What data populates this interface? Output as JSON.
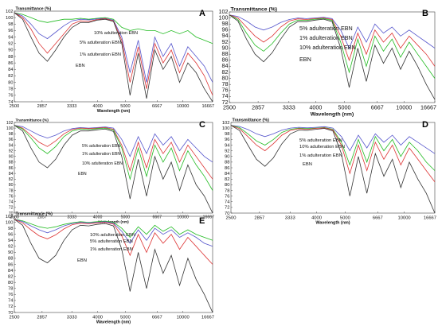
{
  "chart_data": [
    {
      "panel": "A",
      "type": "line",
      "ylabel": "Transmittance (%)",
      "xlabel": "Wavelength (nm)",
      "xtick_labels": [
        "2500",
        "2857",
        "3333",
        "4000",
        "5000",
        "6667",
        "10000",
        "16667"
      ],
      "ytick_values": [
        74,
        76,
        78,
        80,
        82,
        84,
        86,
        88,
        90,
        92,
        94,
        96,
        98,
        100,
        102
      ],
      "ylim": [
        74,
        102
      ],
      "annotations": [
        "10% adulteration EBN",
        "5% adulteration EBN",
        "1% adulteration EBN",
        "EBN"
      ],
      "series": [
        {
          "color": "#22bb22",
          "values": [
            101.5,
            101,
            100,
            99,
            98.5,
            99,
            99.5,
            99.5,
            99.8,
            99.5,
            99.8,
            100,
            99.5,
            97,
            96,
            96.5,
            96,
            96,
            95,
            96,
            95,
            96,
            94,
            93,
            92
          ]
        },
        {
          "color": "#5555cc",
          "values": [
            101.5,
            100.5,
            98,
            95,
            93.5,
            95.5,
            97.5,
            99,
            99.5,
            99.3,
            99.6,
            99.8,
            99.2,
            94,
            83,
            93,
            80,
            94,
            88,
            92,
            85,
            91,
            88,
            85,
            80
          ]
        },
        {
          "color": "#dd3333",
          "values": [
            101.5,
            100,
            96.5,
            92,
            89,
            92,
            95,
            98,
            99,
            98.8,
            99.4,
            99.7,
            99,
            93,
            80,
            91,
            78,
            92,
            86,
            90,
            83,
            89,
            86,
            82,
            76
          ]
        },
        {
          "color": "#333333",
          "values": [
            101.5,
            99.5,
            94,
            89,
            86.5,
            90,
            94,
            97,
            98.5,
            98.5,
            99.2,
            99.5,
            98.8,
            92,
            76,
            89,
            75,
            90,
            84,
            88,
            80,
            86,
            83,
            78,
            74
          ]
        }
      ]
    },
    {
      "panel": "B",
      "type": "line",
      "ylabel": "Transmittance (%)",
      "xlabel": "Wavelength (nm)",
      "xtick_labels": [
        "2500",
        "2857",
        "3333",
        "4000",
        "5000",
        "6667",
        "10000",
        "16667"
      ],
      "ytick_values": [
        72,
        74,
        76,
        78,
        80,
        82,
        84,
        86,
        88,
        90,
        92,
        94,
        96,
        98,
        100,
        102
      ],
      "ylim": [
        72,
        102
      ],
      "annotations": [
        "5% adulteration EBN",
        "1% adulteration EBN",
        "10% adulteration EBN",
        "EBN"
      ],
      "series": [
        {
          "color": "#5555cc",
          "values": [
            101,
            100.5,
            99,
            97,
            96,
            97,
            98.5,
            99.5,
            100,
            99.8,
            100,
            100.2,
            99.8,
            96,
            90,
            97,
            92,
            98,
            95,
            97,
            94,
            96,
            94,
            92,
            90
          ]
        },
        {
          "color": "#dd3333",
          "values": [
            101,
            100,
            97,
            94,
            92,
            94,
            97,
            99,
            99.7,
            99.5,
            99.8,
            100,
            99.5,
            94,
            86,
            95,
            88,
            96,
            92,
            95,
            90,
            94,
            91,
            88,
            84
          ]
        },
        {
          "color": "#22bb22",
          "values": [
            101,
            99.5,
            95,
            91,
            89,
            91.5,
            95,
            98,
            99.3,
            99.2,
            99.6,
            99.8,
            99.2,
            92,
            82,
            93,
            84,
            94,
            89,
            93,
            87,
            92,
            88,
            84,
            80
          ]
        },
        {
          "color": "#333333",
          "values": [
            101,
            99,
            93,
            88,
            85.5,
            88.5,
            93,
            97,
            98.8,
            98.8,
            99.3,
            99.6,
            98.8,
            90,
            77,
            90,
            79,
            91,
            85,
            90,
            83,
            89,
            84,
            78,
            73
          ]
        }
      ]
    },
    {
      "panel": "C",
      "type": "line",
      "ylabel": "Transmittance (%)",
      "xlabel": "Wavelength (nm)",
      "xtick_labels": [
        "2500",
        "2857",
        "3333",
        "4000",
        "5000",
        "6667",
        "10000",
        "16667"
      ],
      "ytick_values": [
        70,
        72,
        74,
        76,
        78,
        80,
        82,
        84,
        86,
        88,
        90,
        92,
        94,
        96,
        98,
        100,
        102
      ],
      "ylim": [
        70,
        102
      ],
      "annotations": [
        "5% adulteration EBN",
        "1% adulteration EBN",
        "10% adulteration EBN",
        "EBN"
      ],
      "series": [
        {
          "color": "#5555cc",
          "values": [
            101,
            100.5,
            99,
            97.5,
            96.5,
            97.5,
            99,
            99.8,
            100.2,
            100,
            100.2,
            100.4,
            100,
            96,
            90,
            97,
            91,
            98,
            94,
            97,
            92,
            96,
            93,
            90,
            88
          ]
        },
        {
          "color": "#dd3333",
          "values": [
            101,
            100,
            97.5,
            95,
            93.5,
            95.5,
            98,
            99.5,
            100,
            99.8,
            100,
            100.2,
            99.6,
            94,
            85,
            95,
            86,
            96,
            91,
            95,
            88,
            94,
            90,
            86,
            82
          ]
        },
        {
          "color": "#22bb22",
          "values": [
            101,
            99.7,
            96.5,
            93,
            91,
            93.5,
            97,
            99,
            99.7,
            99.5,
            99.8,
            100,
            99.3,
            93,
            82,
            93,
            83,
            94,
            88,
            93,
            85,
            92,
            87,
            83,
            78
          ]
        },
        {
          "color": "#333333",
          "values": [
            101,
            99,
            93,
            88,
            86,
            89,
            94,
            97.5,
            99,
            99,
            99.4,
            99.7,
            98.8,
            90,
            75,
            89,
            76,
            90,
            82,
            88,
            78,
            87,
            80,
            76,
            70
          ]
        }
      ]
    },
    {
      "panel": "D",
      "type": "line",
      "ylabel": "Transmittance (%)",
      "xlabel": "Wavelength (nm)",
      "xtick_labels": [
        "2500",
        "2857",
        "3333",
        "4000",
        "5000",
        "6667",
        "10000",
        "16667"
      ],
      "ytick_values": [
        70,
        72,
        74,
        76,
        78,
        80,
        82,
        84,
        86,
        88,
        90,
        92,
        94,
        96,
        98,
        100,
        102
      ],
      "ylim": [
        70,
        102
      ],
      "annotations": [
        "5% adulteration EBN",
        "10% adulteration EBN",
        "1% adulteration EBN",
        "EBN"
      ],
      "series": [
        {
          "color": "#5555cc",
          "values": [
            101,
            100.6,
            99.5,
            98,
            97,
            98,
            99.3,
            100,
            100.3,
            100.1,
            100.3,
            100.5,
            100,
            97,
            92,
            97.5,
            93,
            98,
            95,
            97.5,
            94,
            97,
            95,
            93,
            91
          ]
        },
        {
          "color": "#22bb22",
          "values": [
            101,
            100.2,
            98,
            95.5,
            94,
            96,
            98.5,
            99.6,
            100,
            99.8,
            100,
            100.2,
            99.6,
            95,
            87,
            96,
            88,
            97,
            92,
            96,
            90,
            95,
            92,
            88,
            85
          ]
        },
        {
          "color": "#dd3333",
          "values": [
            101,
            99.8,
            97,
            94,
            92,
            94.5,
            97.5,
            99.2,
            99.8,
            99.6,
            99.9,
            100.1,
            99.4,
            94,
            84,
            94,
            85,
            95,
            89,
            94,
            87,
            93,
            89,
            85,
            81
          ]
        },
        {
          "color": "#333333",
          "values": [
            101,
            99.2,
            94,
            89,
            86.5,
            89.5,
            94.5,
            98,
            99.3,
            99.2,
            99.6,
            99.9,
            99,
            91,
            76,
            90,
            77,
            91,
            83,
            89,
            79,
            88,
            82,
            77,
            70
          ]
        }
      ]
    },
    {
      "panel": "E",
      "type": "line",
      "ylabel": "Transmittance (%)",
      "xlabel": "Wavelength (nm)",
      "xtick_labels": [
        "2500",
        "2857",
        "3333",
        "4000",
        "5000",
        "6667",
        "10000",
        "16667"
      ],
      "ytick_values": [
        70,
        72,
        74,
        76,
        78,
        80,
        82,
        84,
        86,
        88,
        90,
        92,
        94,
        96,
        98,
        100,
        102
      ],
      "ylim": [
        70,
        102
      ],
      "annotations": [
        "10% adulteration EBN",
        "5% adulteration EBN",
        "1% adulteration EBN",
        "EBN"
      ],
      "series": [
        {
          "color": "#22bb22",
          "values": [
            101,
            100.5,
            99.5,
            98.5,
            98,
            98.5,
            99.3,
            99.8,
            100.2,
            100,
            100.2,
            100.4,
            100,
            98,
            95,
            98.5,
            96,
            99,
            97,
            98.5,
            96,
            97.5,
            96,
            95,
            94
          ]
        },
        {
          "color": "#5555cc",
          "values": [
            101,
            100.2,
            98.8,
            97.5,
            96.5,
            97.5,
            98.8,
            99.6,
            100,
            99.8,
            100,
            100.2,
            99.7,
            97,
            93,
            97.5,
            94,
            98,
            96,
            97.5,
            95,
            96.5,
            95,
            93,
            92
          ]
        },
        {
          "color": "#dd3333",
          "values": [
            101,
            99.8,
            97.5,
            95.5,
            94.5,
            95.8,
            97.8,
            99.2,
            99.7,
            99.5,
            99.8,
            100,
            99.4,
            95.5,
            89,
            96,
            90,
            96.5,
            93,
            96,
            91,
            95,
            92,
            89,
            86
          ]
        },
        {
          "color": "#333333",
          "values": [
            101,
            99,
            93,
            88,
            86.5,
            89,
            94,
            97.5,
            99,
            98.8,
            99.3,
            99.6,
            98.8,
            91,
            77,
            90,
            78,
            91,
            83,
            89,
            79,
            88,
            81,
            76,
            70
          ]
        }
      ]
    }
  ]
}
